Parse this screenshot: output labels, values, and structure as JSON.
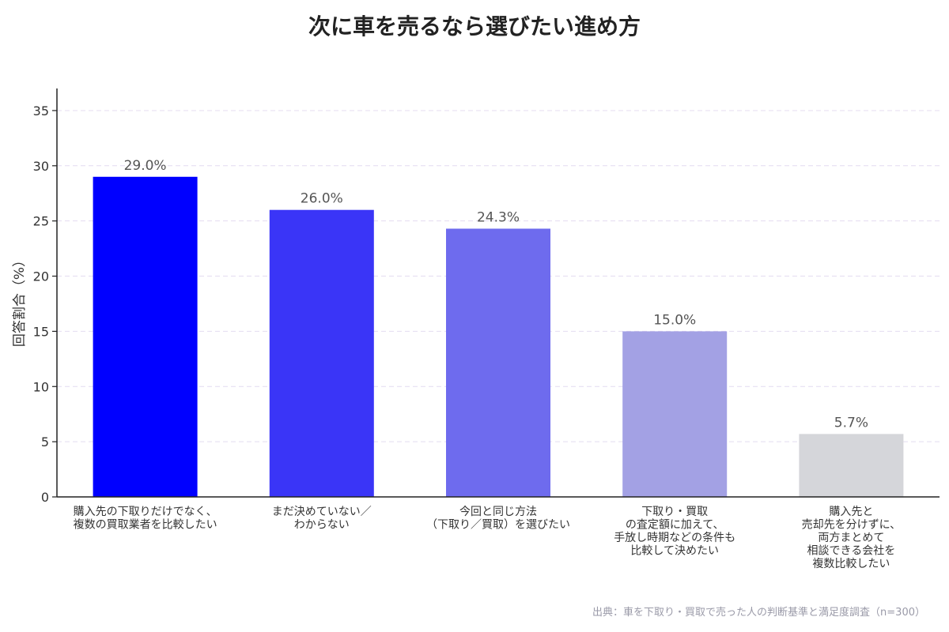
{
  "chart_data": {
    "type": "bar",
    "title": "次に車を売るなら選びたい進め方",
    "ylabel": "回答割合（%）",
    "xlabel": "",
    "ylim": [
      0,
      37
    ],
    "yticks": [
      0,
      5,
      10,
      15,
      20,
      25,
      30,
      35
    ],
    "grid": true,
    "categories": [
      [
        "購入先の下取りだけでなく、",
        "複数の買取業者を比較したい"
      ],
      [
        "まだ決めていない／",
        "わからない"
      ],
      [
        "今回と同じ方法",
        "（下取り／買取）を選びたい"
      ],
      [
        "下取り・買取",
        "の査定額に加えて、",
        "手放し時期などの条件も",
        "比較して決めたい"
      ],
      [
        "購入先と",
        "売却先を分けずに、",
        "両方まとめて",
        "相談できる会社を",
        "複数比較したい"
      ]
    ],
    "values": [
      29.0,
      26.0,
      24.3,
      15.0,
      5.7
    ],
    "value_labels": [
      "29.0%",
      "26.0%",
      "24.3%",
      "15.0%",
      "5.7%"
    ],
    "colors": [
      "#0000ff",
      "#3a35f7",
      "#6e6bee",
      "#a3a1e4",
      "#d5d6da"
    ],
    "grid_color": "#e4dcf0",
    "source": "出典：車を下取り・買取で売った人の判断基準と満足度調査（n=300）"
  }
}
